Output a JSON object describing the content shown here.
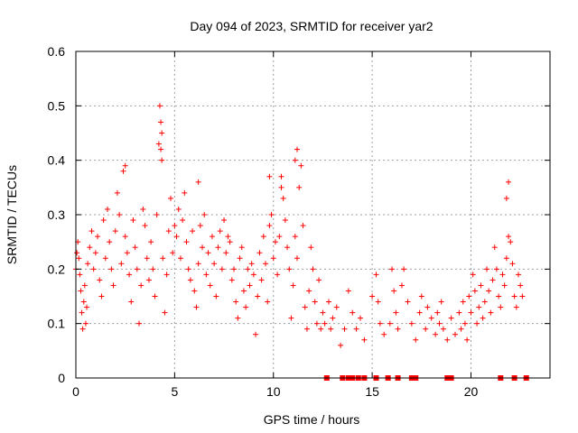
{
  "chart_data": {
    "type": "scatter",
    "title": "Day 094 of 2023, SRMTID for receiver yar2",
    "xlabel": "GPS time / hours",
    "ylabel": "SRMTID / TECUs",
    "xlim": [
      0,
      24
    ],
    "ylim": [
      0,
      0.6
    ],
    "xticks": [
      0,
      5,
      10,
      15,
      20
    ],
    "xtick_labels": [
      "0",
      "5",
      "10",
      "15",
      "20"
    ],
    "yticks": [
      0,
      0.1,
      0.2,
      0.3,
      0.4,
      0.5,
      0.6
    ],
    "ytick_labels": [
      "0",
      "0.1",
      "0.2",
      "0.3",
      "0.4",
      "0.5",
      "0.6"
    ],
    "grid": true,
    "marker": "+",
    "color": "#ff0000",
    "gap_markers_at_zero": [
      12.7,
      13.5,
      13.8,
      14.0,
      14.3,
      14.6,
      15.2,
      15.8,
      16.3,
      17.0,
      17.2,
      18.8,
      19.0,
      21.5,
      22.2,
      22.8
    ],
    "series": [
      {
        "name": "SRMTID",
        "points": [
          [
            0.0,
            0.2
          ],
          [
            0.05,
            0.23
          ],
          [
            0.1,
            0.25
          ],
          [
            0.15,
            0.22
          ],
          [
            0.2,
            0.19
          ],
          [
            0.25,
            0.16
          ],
          [
            0.3,
            0.12
          ],
          [
            0.35,
            0.09
          ],
          [
            0.4,
            0.14
          ],
          [
            0.45,
            0.17
          ],
          [
            0.5,
            0.1
          ],
          [
            0.55,
            0.13
          ],
          [
            0.6,
            0.21
          ],
          [
            0.7,
            0.24
          ],
          [
            0.8,
            0.27
          ],
          [
            0.9,
            0.2
          ],
          [
            1.0,
            0.23
          ],
          [
            1.1,
            0.26
          ],
          [
            1.2,
            0.18
          ],
          [
            1.3,
            0.15
          ],
          [
            1.4,
            0.29
          ],
          [
            1.5,
            0.22
          ],
          [
            1.6,
            0.31
          ],
          [
            1.7,
            0.25
          ],
          [
            1.8,
            0.2
          ],
          [
            1.9,
            0.17
          ],
          [
            2.0,
            0.27
          ],
          [
            2.1,
            0.34
          ],
          [
            2.2,
            0.3
          ],
          [
            2.3,
            0.21
          ],
          [
            2.4,
            0.38
          ],
          [
            2.5,
            0.26
          ],
          [
            2.6,
            0.23
          ],
          [
            2.7,
            0.19
          ],
          [
            2.8,
            0.14
          ],
          [
            2.9,
            0.29
          ],
          [
            3.0,
            0.24
          ],
          [
            3.1,
            0.2
          ],
          [
            3.2,
            0.1
          ],
          [
            3.3,
            0.17
          ],
          [
            3.4,
            0.31
          ],
          [
            3.5,
            0.28
          ],
          [
            3.6,
            0.22
          ],
          [
            3.7,
            0.18
          ],
          [
            3.8,
            0.25
          ],
          [
            3.9,
            0.2
          ],
          [
            4.0,
            0.15
          ],
          [
            4.1,
            0.3
          ],
          [
            4.2,
            0.43
          ],
          [
            4.25,
            0.5
          ],
          [
            4.3,
            0.47
          ],
          [
            4.35,
            0.4
          ],
          [
            4.4,
            0.22
          ],
          [
            4.5,
            0.12
          ],
          [
            4.6,
            0.19
          ],
          [
            4.7,
            0.27
          ],
          [
            4.8,
            0.33
          ],
          [
            4.9,
            0.23
          ],
          [
            5.0,
            0.28
          ],
          [
            5.1,
            0.26
          ],
          [
            5.2,
            0.31
          ],
          [
            5.3,
            0.22
          ],
          [
            5.4,
            0.29
          ],
          [
            5.5,
            0.34
          ],
          [
            5.6,
            0.25
          ],
          [
            5.7,
            0.2
          ],
          [
            5.8,
            0.18
          ],
          [
            5.9,
            0.27
          ],
          [
            6.0,
            0.16
          ],
          [
            6.1,
            0.13
          ],
          [
            6.2,
            0.21
          ],
          [
            6.3,
            0.28
          ],
          [
            6.4,
            0.24
          ],
          [
            6.5,
            0.3
          ],
          [
            6.6,
            0.19
          ],
          [
            6.7,
            0.23
          ],
          [
            6.8,
            0.17
          ],
          [
            6.9,
            0.26
          ],
          [
            7.0,
            0.21
          ],
          [
            7.1,
            0.15
          ],
          [
            7.2,
            0.24
          ],
          [
            7.3,
            0.27
          ],
          [
            7.4,
            0.2
          ],
          [
            7.5,
            0.29
          ],
          [
            7.6,
            0.23
          ],
          [
            7.7,
            0.26
          ],
          [
            7.8,
            0.25
          ],
          [
            7.9,
            0.18
          ],
          [
            8.0,
            0.2
          ],
          [
            8.1,
            0.14
          ],
          [
            8.2,
            0.11
          ],
          [
            8.3,
            0.22
          ],
          [
            8.4,
            0.24
          ],
          [
            8.5,
            0.16
          ],
          [
            8.6,
            0.13
          ],
          [
            8.7,
            0.2
          ],
          [
            8.8,
            0.17
          ],
          [
            8.9,
            0.21
          ],
          [
            9.0,
            0.19
          ],
          [
            9.1,
            0.08
          ],
          [
            9.2,
            0.15
          ],
          [
            9.3,
            0.23
          ],
          [
            9.4,
            0.18
          ],
          [
            9.5,
            0.26
          ],
          [
            9.6,
            0.21
          ],
          [
            9.7,
            0.14
          ],
          [
            9.8,
            0.28
          ],
          [
            9.9,
            0.3
          ],
          [
            10.0,
            0.22
          ],
          [
            10.1,
            0.25
          ],
          [
            10.2,
            0.19
          ],
          [
            10.3,
            0.26
          ],
          [
            10.4,
            0.35
          ],
          [
            10.5,
            0.33
          ],
          [
            10.6,
            0.29
          ],
          [
            10.7,
            0.24
          ],
          [
            10.8,
            0.2
          ],
          [
            10.9,
            0.11
          ],
          [
            11.0,
            0.17
          ],
          [
            11.1,
            0.26
          ],
          [
            11.2,
            0.22
          ],
          [
            11.3,
            0.35
          ],
          [
            11.4,
            0.39
          ],
          [
            11.5,
            0.28
          ],
          [
            11.6,
            0.13
          ],
          [
            11.7,
            0.09
          ],
          [
            11.8,
            0.16
          ],
          [
            11.9,
            0.24
          ],
          [
            12.0,
            0.2
          ],
          [
            12.1,
            0.14
          ],
          [
            12.2,
            0.1
          ],
          [
            12.3,
            0.18
          ],
          [
            12.4,
            0.09
          ],
          [
            12.5,
            0.12
          ],
          [
            12.6,
            0.1
          ],
          [
            12.8,
            0.14
          ],
          [
            12.9,
            0.09
          ],
          [
            13.0,
            0.11
          ],
          [
            13.2,
            0.13
          ],
          [
            13.4,
            0.06
          ],
          [
            13.6,
            0.09
          ],
          [
            13.8,
            0.16
          ],
          [
            14.0,
            0.12
          ],
          [
            14.2,
            0.09
          ],
          [
            14.4,
            0.11
          ],
          [
            14.6,
            0.07
          ],
          [
            15.0,
            0.15
          ],
          [
            15.2,
            0.19
          ],
          [
            15.3,
            0.14
          ],
          [
            15.4,
            0.1
          ],
          [
            15.6,
            0.08
          ],
          [
            15.9,
            0.1
          ],
          [
            16.0,
            0.2
          ],
          [
            16.1,
            0.16
          ],
          [
            16.2,
            0.12
          ],
          [
            16.3,
            0.09
          ],
          [
            16.5,
            0.17
          ],
          [
            16.6,
            0.2
          ],
          [
            16.8,
            0.14
          ],
          [
            17.0,
            0.1
          ],
          [
            17.2,
            0.07
          ],
          [
            17.4,
            0.12
          ],
          [
            17.5,
            0.15
          ],
          [
            17.7,
            0.09
          ],
          [
            17.8,
            0.13
          ],
          [
            18.0,
            0.11
          ],
          [
            18.2,
            0.08
          ],
          [
            18.3,
            0.12
          ],
          [
            18.4,
            0.1
          ],
          [
            18.5,
            0.14
          ],
          [
            18.6,
            0.09
          ],
          [
            18.8,
            0.07
          ],
          [
            19.0,
            0.11
          ],
          [
            19.2,
            0.08
          ],
          [
            19.4,
            0.12
          ],
          [
            19.5,
            0.09
          ],
          [
            19.6,
            0.14
          ],
          [
            19.7,
            0.1
          ],
          [
            19.8,
            0.07
          ],
          [
            19.9,
            0.15
          ],
          [
            20.0,
            0.12
          ],
          [
            20.1,
            0.19
          ],
          [
            20.2,
            0.16
          ],
          [
            20.3,
            0.1
          ],
          [
            20.4,
            0.13
          ],
          [
            20.5,
            0.17
          ],
          [
            20.6,
            0.11
          ],
          [
            20.7,
            0.14
          ],
          [
            20.8,
            0.2
          ],
          [
            20.9,
            0.16
          ],
          [
            21.0,
            0.12
          ],
          [
            21.1,
            0.18
          ],
          [
            21.2,
            0.24
          ],
          [
            21.3,
            0.2
          ],
          [
            21.4,
            0.15
          ],
          [
            21.5,
            0.13
          ],
          [
            21.6,
            0.19
          ],
          [
            21.7,
            0.17
          ],
          [
            21.8,
            0.22
          ],
          [
            21.9,
            0.26
          ],
          [
            22.0,
            0.25
          ],
          [
            22.1,
            0.21
          ],
          [
            22.2,
            0.15
          ],
          [
            22.3,
            0.13
          ],
          [
            22.4,
            0.19
          ],
          [
            22.5,
            0.17
          ],
          [
            22.6,
            0.15
          ],
          [
            21.8,
            0.33
          ],
          [
            21.9,
            0.36
          ],
          [
            11.1,
            0.4
          ],
          [
            11.2,
            0.42
          ],
          [
            10.4,
            0.37
          ],
          [
            9.8,
            0.37
          ],
          [
            2.5,
            0.39
          ],
          [
            6.2,
            0.36
          ],
          [
            4.35,
            0.45
          ],
          [
            4.3,
            0.42
          ]
        ]
      }
    ]
  }
}
